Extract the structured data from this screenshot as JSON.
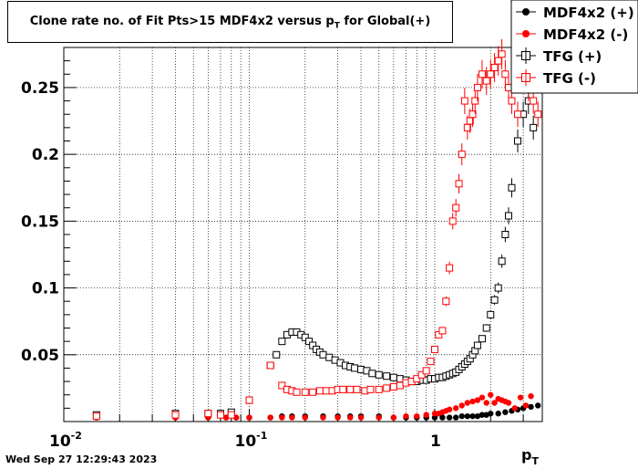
{
  "chart_data": {
    "type": "scatter",
    "title": "Clone rate no. of Fit Pts>15 MDF4x2 versus pT for Global(+)",
    "title_main": "Clone rate no. of Fit Pts>15 MDF4x2 versus p",
    "title_sub": "T",
    "title_tail": " for Global(+)",
    "xlabel": "p",
    "xlabel_sub": "T",
    "ylabel": "",
    "x_scale": "log",
    "xlim": [
      0.01,
      3.8
    ],
    "ylim": [
      0.0,
      0.28
    ],
    "grid": true,
    "legend_position": "top-right",
    "x_tick_labels": [
      {
        "value": 0.01,
        "base": "10",
        "exp": "-2"
      },
      {
        "value": 0.1,
        "base": "10",
        "exp": "-1"
      },
      {
        "value": 1,
        "base": "1",
        "exp": ""
      }
    ],
    "y_ticks": [
      0.05,
      0.1,
      0.15,
      0.2,
      0.25
    ],
    "y_tick_labels": [
      "0.05",
      "0.1",
      "0.15",
      "0.2",
      "0.25"
    ],
    "series": [
      {
        "name": "MDF4x2 (+)",
        "color": "#000000",
        "marker": "filled-circle",
        "x": [
          0.015,
          0.04,
          0.06,
          0.075,
          0.085,
          0.1,
          0.13,
          0.15,
          0.17,
          0.2,
          0.25,
          0.3,
          0.35,
          0.4,
          0.5,
          0.6,
          0.7,
          0.8,
          0.9,
          1.0,
          1.1,
          1.2,
          1.3,
          1.4,
          1.5,
          1.6,
          1.7,
          1.8,
          1.9,
          2.0,
          2.2,
          2.4,
          2.6,
          2.8,
          3.0,
          3.3,
          3.6
        ],
        "y": [
          0.003,
          0.003,
          0.003,
          0.003,
          0.003,
          0.003,
          0.003,
          0.004,
          0.004,
          0.004,
          0.004,
          0.004,
          0.004,
          0.004,
          0.004,
          0.003,
          0.003,
          0.003,
          0.003,
          0.003,
          0.003,
          0.003,
          0.003,
          0.004,
          0.004,
          0.004,
          0.004,
          0.005,
          0.005,
          0.006,
          0.006,
          0.007,
          0.008,
          0.009,
          0.01,
          0.011,
          0.012
        ]
      },
      {
        "name": "MDF4x2 (-)",
        "color": "#ff0000",
        "marker": "filled-circle",
        "x": [
          0.015,
          0.04,
          0.06,
          0.075,
          0.085,
          0.1,
          0.13,
          0.15,
          0.17,
          0.2,
          0.25,
          0.3,
          0.35,
          0.4,
          0.5,
          0.6,
          0.7,
          0.8,
          0.9,
          1.0,
          1.05,
          1.1,
          1.15,
          1.2,
          1.3,
          1.4,
          1.5,
          1.6,
          1.7,
          1.8,
          1.9,
          2.0,
          2.1,
          2.2,
          2.3,
          2.4,
          2.5,
          2.7,
          2.9,
          3.1,
          3.3
        ],
        "y": [
          0.003,
          0.003,
          0.003,
          0.003,
          0.003,
          0.003,
          0.003,
          0.003,
          0.003,
          0.003,
          0.003,
          0.003,
          0.003,
          0.003,
          0.003,
          0.003,
          0.004,
          0.004,
          0.005,
          0.006,
          0.006,
          0.007,
          0.008,
          0.009,
          0.01,
          0.012,
          0.014,
          0.015,
          0.016,
          0.018,
          0.014,
          0.02,
          0.014,
          0.017,
          0.016,
          0.015,
          0.014,
          0.01,
          0.018,
          0.012,
          0.019
        ]
      },
      {
        "name": "TFG (+)",
        "color": "#000000",
        "marker": "open-square",
        "x": [
          0.015,
          0.04,
          0.06,
          0.07,
          0.08,
          0.1,
          0.13,
          0.14,
          0.15,
          0.16,
          0.17,
          0.18,
          0.19,
          0.2,
          0.21,
          0.22,
          0.23,
          0.24,
          0.25,
          0.27,
          0.29,
          0.31,
          0.33,
          0.35,
          0.37,
          0.4,
          0.43,
          0.46,
          0.5,
          0.55,
          0.6,
          0.65,
          0.7,
          0.75,
          0.8,
          0.85,
          0.9,
          0.95,
          1.0,
          1.05,
          1.1,
          1.15,
          1.2,
          1.25,
          1.3,
          1.35,
          1.4,
          1.45,
          1.5,
          1.55,
          1.6,
          1.65,
          1.7,
          1.8,
          1.9,
          2.0,
          2.1,
          2.2,
          2.3,
          2.4,
          2.5,
          2.6,
          2.8,
          3.0,
          3.2,
          3.4
        ],
        "y": [
          0.005,
          0.006,
          0.006,
          0.006,
          0.007,
          0.016,
          0.042,
          0.05,
          0.06,
          0.065,
          0.067,
          0.067,
          0.065,
          0.063,
          0.06,
          0.057,
          0.054,
          0.052,
          0.05,
          0.048,
          0.046,
          0.044,
          0.042,
          0.041,
          0.04,
          0.039,
          0.038,
          0.036,
          0.035,
          0.034,
          0.033,
          0.032,
          0.031,
          0.03,
          0.03,
          0.031,
          0.031,
          0.032,
          0.032,
          0.033,
          0.033,
          0.034,
          0.035,
          0.036,
          0.037,
          0.039,
          0.041,
          0.043,
          0.045,
          0.047,
          0.05,
          0.053,
          0.057,
          0.062,
          0.07,
          0.08,
          0.091,
          0.1,
          0.12,
          0.14,
          0.154,
          0.175,
          0.21,
          0.23,
          0.24,
          0.22
        ]
      },
      {
        "name": "TFG (-)",
        "color": "#ff0000",
        "marker": "open-square",
        "x": [
          0.015,
          0.04,
          0.06,
          0.07,
          0.08,
          0.1,
          0.13,
          0.15,
          0.16,
          0.17,
          0.18,
          0.2,
          0.22,
          0.24,
          0.26,
          0.28,
          0.3,
          0.32,
          0.35,
          0.38,
          0.42,
          0.45,
          0.5,
          0.55,
          0.6,
          0.65,
          0.7,
          0.75,
          0.8,
          0.85,
          0.9,
          0.95,
          1.0,
          1.05,
          1.1,
          1.15,
          1.2,
          1.25,
          1.3,
          1.35,
          1.4,
          1.45,
          1.5,
          1.55,
          1.6,
          1.65,
          1.7,
          1.8,
          1.9,
          2.0,
          2.1,
          2.2,
          2.3,
          2.4,
          2.5,
          2.6,
          2.8,
          3.0,
          3.2,
          3.4,
          3.6
        ],
        "y": [
          0.004,
          0.005,
          0.006,
          0.005,
          0.005,
          0.016,
          0.042,
          0.027,
          0.024,
          0.023,
          0.022,
          0.022,
          0.022,
          0.023,
          0.023,
          0.023,
          0.024,
          0.024,
          0.024,
          0.024,
          0.023,
          0.024,
          0.024,
          0.025,
          0.026,
          0.027,
          0.029,
          0.03,
          0.032,
          0.035,
          0.038,
          0.045,
          0.054,
          0.065,
          0.068,
          0.09,
          0.115,
          0.15,
          0.16,
          0.178,
          0.2,
          0.24,
          0.22,
          0.225,
          0.23,
          0.24,
          0.25,
          0.26,
          0.255,
          0.26,
          0.265,
          0.27,
          0.275,
          0.26,
          0.25,
          0.24,
          0.23,
          0.27,
          0.25,
          0.24,
          0.23
        ]
      }
    ]
  },
  "footer": {
    "timestamp": "Wed Sep 27 12:29:43 2023"
  }
}
